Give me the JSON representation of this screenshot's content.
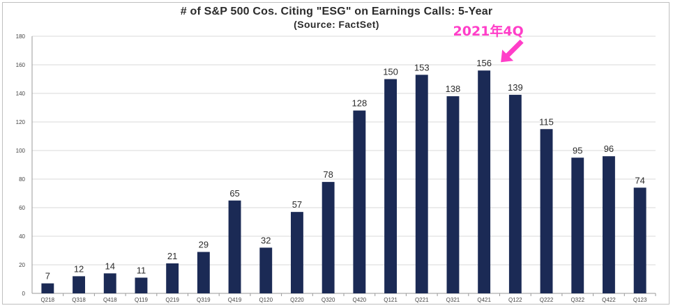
{
  "chart_data": {
    "type": "bar",
    "title": "# of S&P 500 Cos. Citing \"ESG\" on Earnings Calls: 5-Year",
    "subtitle": "(Source: FactSet)",
    "xlabel": "",
    "ylabel": "",
    "categories": [
      "Q218",
      "Q318",
      "Q418",
      "Q119",
      "Q219",
      "Q319",
      "Q419",
      "Q120",
      "Q220",
      "Q320",
      "Q420",
      "Q121",
      "Q221",
      "Q321",
      "Q421",
      "Q122",
      "Q222",
      "Q322",
      "Q422",
      "Q123"
    ],
    "values": [
      7,
      12,
      14,
      11,
      21,
      29,
      65,
      32,
      57,
      78,
      128,
      150,
      153,
      138,
      156,
      139,
      115,
      95,
      96,
      74
    ],
    "ylim": [
      0,
      180
    ],
    "yticks": [
      0,
      20,
      40,
      60,
      80,
      100,
      120,
      140,
      160,
      180
    ],
    "grid": true,
    "bar_color": "#1b2a55",
    "grid_color": "#d9d9d9",
    "annotation": {
      "text": "2021年4Q",
      "target_category": "Q421",
      "color": "#ff3ec8"
    }
  }
}
